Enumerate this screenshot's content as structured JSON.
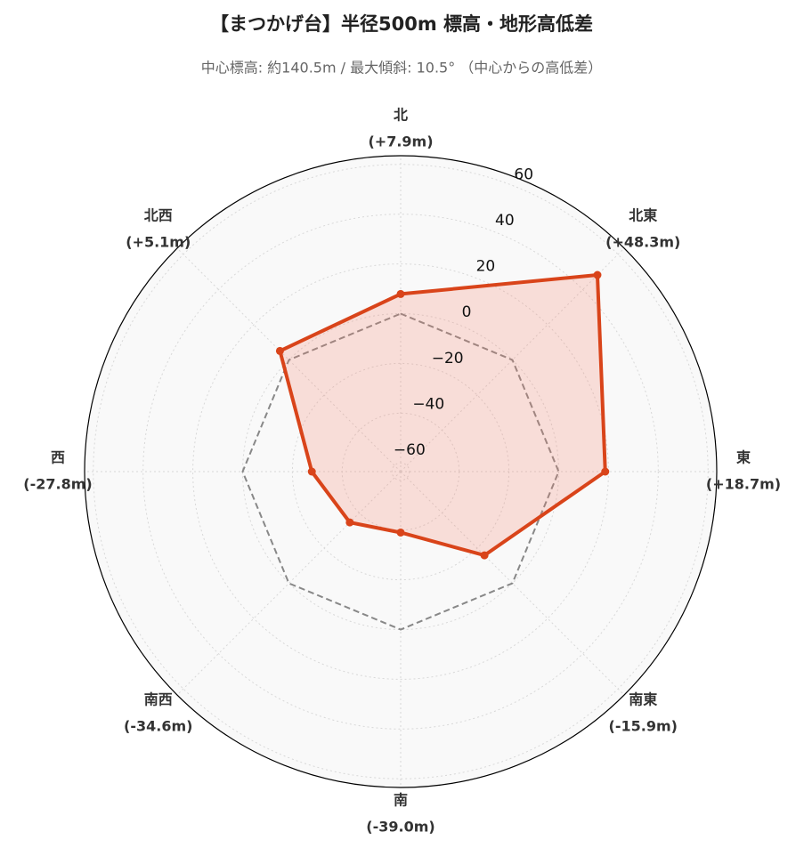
{
  "chart_data": {
    "type": "radar",
    "title": "【まつかげ台】半径500m 標高・地形高低差",
    "subtitle": "中心標高: 約140.5m / 最大傾斜: 10.5° （中心からの高低差）",
    "categories": [
      "北",
      "北東",
      "東",
      "南東",
      "南",
      "南西",
      "西",
      "北西"
    ],
    "values": [
      7.9,
      48.3,
      18.7,
      -15.9,
      -39.0,
      -34.6,
      -27.8,
      5.1
    ],
    "value_labels": [
      "(+7.9m)",
      "(+48.3m)",
      "(+18.7m)",
      "(-15.9m)",
      "(-39.0m)",
      "(-34.6m)",
      "(-27.8m)",
      "(+5.1m)"
    ],
    "color": "#d9441a",
    "fill_color": "#f47c62",
    "reference_line": 0,
    "reference_color": "#888888",
    "ylim": [
      -63.5,
      63.5
    ],
    "yticks": [
      {
        "value": -60,
        "label": "−60"
      },
      {
        "value": -40,
        "label": "−40"
      },
      {
        "value": -20,
        "label": "−20"
      },
      0,
      20,
      40,
      60
    ],
    "grid": true
  }
}
